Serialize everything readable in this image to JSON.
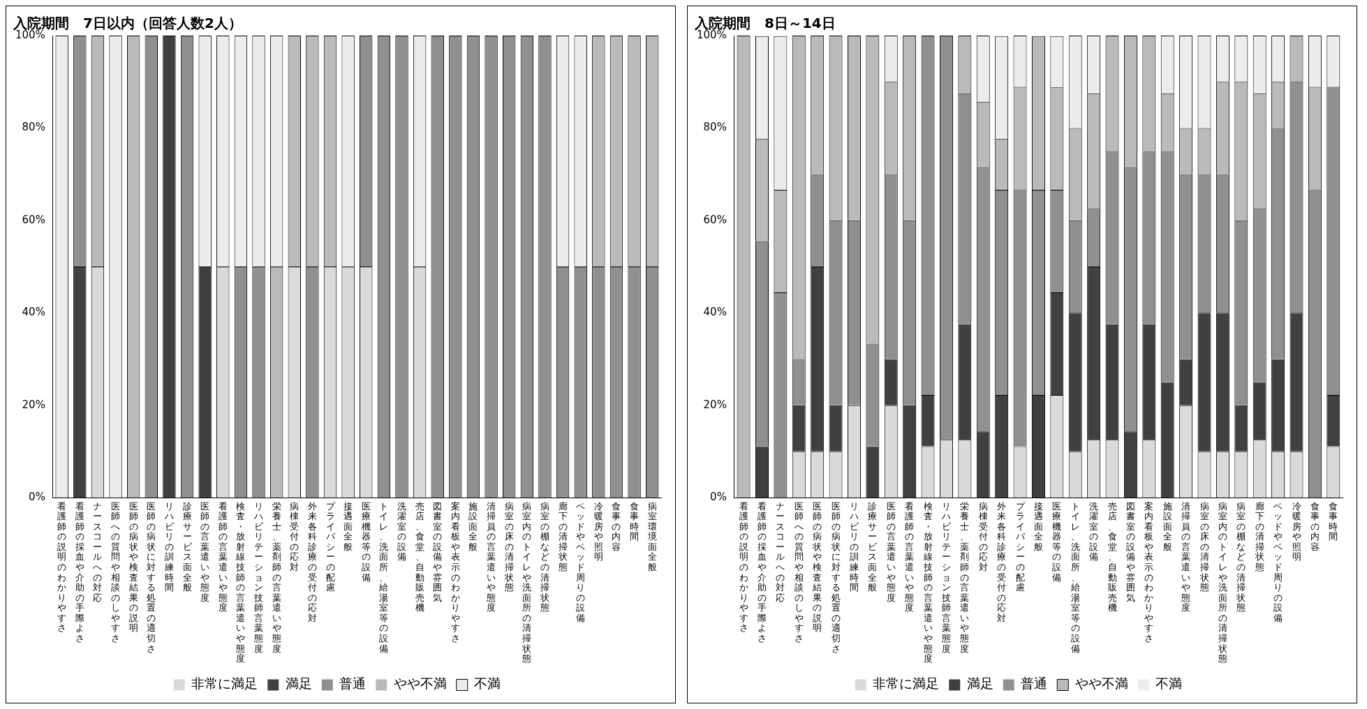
{
  "chart_data": [
    {
      "type": "bar",
      "title": "入院期間　7日以内（回答人数2人）",
      "stacked": true,
      "grid": false,
      "legend": "bottom",
      "categories": [
        "看護師の説明のわかりやすさ",
        "看護師の採血や介助の手際よさ",
        "ナースコールへの対応",
        "医師への質問や相談のしやすさ",
        "医師の病状や検査結果の説明",
        "医師の病状に対する処置の適切さ",
        "リハビリの訓練時間",
        "診療サービス面全般",
        "医師の言葉遣いや態度",
        "看護師の言葉遣いや態度",
        "検査・放射線技師の言葉遣いや態度",
        "リハビリテーション技師言葉態度",
        "栄養士、薬剤師の言葉遣いや態度",
        "病棟受付の応対",
        "外来各科診療の受付の応対",
        "プライバシーの配慮",
        "接遇面全般",
        "医療機器等の設備",
        "トイレ、洗面所、給湯室等の設備",
        "洗濯室の設備",
        "売店、食堂、自動販売機",
        "図書室の設備や雰囲気",
        "案内看板や表示のわかりやすさ",
        "施設面全般",
        "清掃員の言葉遣いや態度",
        "病室の床の清掃状態",
        "病室内のトイレや洗面所の清掃状態",
        "病室の棚などの清掃状態",
        "廊下の清掃状態",
        "ベッドやベッド周りの設備",
        "冷暖房や照明",
        "食事の内容",
        "食事時間",
        "病室環境面全般"
      ],
      "ylim": [
        0,
        100
      ],
      "yticks": [
        {
          "value": 0,
          "label": "0%"
        },
        {
          "value": 20,
          "label": "20%"
        },
        {
          "value": 40,
          "label": "40%"
        },
        {
          "value": 60,
          "label": "60%"
        },
        {
          "value": 80,
          "label": "80%"
        },
        {
          "value": 100,
          "label": "100%"
        }
      ],
      "series": [
        {
          "name": "非常に満足",
          "color": "#dadada",
          "values": [
            0,
            0,
            50,
            0,
            0,
            0,
            0,
            0,
            0,
            50,
            0,
            0,
            0,
            50,
            0,
            50,
            50,
            50,
            0,
            0,
            50,
            0,
            0,
            0,
            0,
            0,
            0,
            0,
            0,
            0,
            0,
            0,
            0,
            0
          ]
        },
        {
          "name": "満足",
          "color": "#404040",
          "values": [
            0,
            50,
            0,
            0,
            0,
            0,
            100,
            0,
            50,
            0,
            0,
            0,
            0,
            0,
            0,
            0,
            0,
            0,
            0,
            0,
            0,
            0,
            0,
            0,
            0,
            0,
            0,
            0,
            0,
            0,
            0,
            0,
            0,
            0
          ]
        },
        {
          "name": "普通",
          "color": "#909090",
          "values": [
            0,
            50,
            0,
            0,
            0,
            100,
            0,
            100,
            0,
            0,
            50,
            50,
            0,
            0,
            50,
            0,
            0,
            50,
            100,
            100,
            0,
            100,
            100,
            100,
            100,
            100,
            100,
            100,
            50,
            50,
            50,
            50,
            50,
            50
          ]
        },
        {
          "name": "やや不満",
          "color": "#bababa",
          "values": [
            0,
            0,
            50,
            0,
            100,
            0,
            0,
            0,
            0,
            0,
            0,
            0,
            50,
            50,
            50,
            50,
            0,
            0,
            0,
            0,
            0,
            0,
            0,
            0,
            0,
            0,
            0,
            0,
            0,
            0,
            50,
            50,
            50,
            50
          ]
        },
        {
          "name": "不満",
          "color": "#ececec",
          "values": [
            100,
            0,
            0,
            100,
            0,
            0,
            0,
            0,
            50,
            50,
            50,
            50,
            50,
            0,
            0,
            0,
            50,
            0,
            0,
            0,
            50,
            0,
            0,
            0,
            0,
            0,
            0,
            0,
            50,
            50,
            0,
            0,
            0,
            0
          ]
        }
      ]
    },
    {
      "type": "bar",
      "title": "入院期間　8日～14日",
      "stacked": true,
      "grid": false,
      "legend": "bottom",
      "categories": [
        "看護師の説明のわかりやすさ",
        "看護師の採血や介助の手際よさ",
        "ナースコールへの対応",
        "医師への質問や相談のしやすさ",
        "医師の病状や検査結果の説明",
        "医師の病状に対する処置の適切さ",
        "リハビリの訓練時間",
        "診療サービス面全般",
        "医師の言葉遣いや態度",
        "看護師の言葉遣いや態度",
        "検査・放射線技師の言葉遣いや態度",
        "リハビリテーション技師言葉態度",
        "栄養士、薬剤師の言葉遣いや態度",
        "病棟受付の応対",
        "外来各科診療の受付の応対",
        "プライバシーの配慮",
        "接遇面全般",
        "医療機器等の設備",
        "トイレ、洗面所、給湯室等の設備",
        "洗濯室の設備",
        "売店、食堂、自動販売機",
        "図書室の設備や雰囲気",
        "案内看板や表示のわかりやすさ",
        "施設面全般",
        "清掃員の言葉遣いや態度",
        "病室の床の清掃状態",
        "病室内のトイレや洗面所の清掃状態",
        "病室の棚などの清掃状態",
        "廊下の清掃状態",
        "ベッドやベッド周りの設備",
        "冷暖房や照明",
        "食事の内容",
        "食事時間"
      ],
      "ylim": [
        0,
        100
      ],
      "yticks": [
        {
          "value": 0,
          "label": "0%"
        },
        {
          "value": 20,
          "label": "20%"
        },
        {
          "value": 40,
          "label": "40%"
        },
        {
          "value": 60,
          "label": "60%"
        },
        {
          "value": 80,
          "label": "80%"
        },
        {
          "value": 100,
          "label": "100%"
        }
      ],
      "series": [
        {
          "name": "非常に満足",
          "color": "#dadada",
          "values": [
            0,
            0,
            0,
            10,
            10,
            10,
            20,
            0,
            20,
            0,
            11.1,
            12.5,
            12.5,
            0,
            0,
            11.1,
            0,
            22.2,
            10,
            12.5,
            12.5,
            0,
            12.5,
            0,
            20,
            10,
            10,
            10,
            12.5,
            10,
            10,
            0,
            11.1
          ]
        },
        {
          "name": "満足",
          "color": "#404040",
          "values": [
            0,
            11.1,
            0,
            10,
            40,
            10,
            0,
            11.1,
            10,
            20,
            11.1,
            0,
            25,
            14.3,
            22.2,
            0,
            22.2,
            22.2,
            30,
            37.5,
            25,
            14.3,
            25,
            25,
            10,
            30,
            30,
            10,
            12.5,
            20,
            30,
            0,
            11.1
          ]
        },
        {
          "name": "普通",
          "color": "#909090",
          "values": [
            0,
            44.4,
            44.4,
            10,
            20,
            40,
            40,
            22.2,
            40,
            40,
            77.8,
            87.5,
            50,
            57.1,
            44.4,
            55.6,
            44.4,
            22.2,
            20,
            12.5,
            37.5,
            57.1,
            37.5,
            50,
            40,
            30,
            30,
            40,
            37.5,
            50,
            50,
            66.7,
            66.7
          ]
        },
        {
          "name": "やや不満",
          "color": "#bababa",
          "values": [
            100,
            22.2,
            22.2,
            70,
            30,
            40,
            40,
            66.7,
            20,
            40,
            0,
            0,
            12.5,
            14.3,
            11.1,
            22.2,
            33.3,
            22.2,
            20,
            25,
            25,
            28.6,
            25,
            12.5,
            10,
            10,
            20,
            30,
            25,
            10,
            10,
            22.2,
            0
          ]
        },
        {
          "name": "不満",
          "color": "#ececec",
          "values": [
            0,
            22.2,
            33.3,
            0,
            0,
            0,
            0,
            0,
            10,
            0,
            0,
            0,
            0,
            14.3,
            22.2,
            11.1,
            0,
            11.1,
            20,
            12.5,
            0,
            0,
            0,
            12.5,
            20,
            20,
            10,
            10,
            12.5,
            10,
            0,
            11.1,
            11.1
          ]
        }
      ]
    }
  ]
}
